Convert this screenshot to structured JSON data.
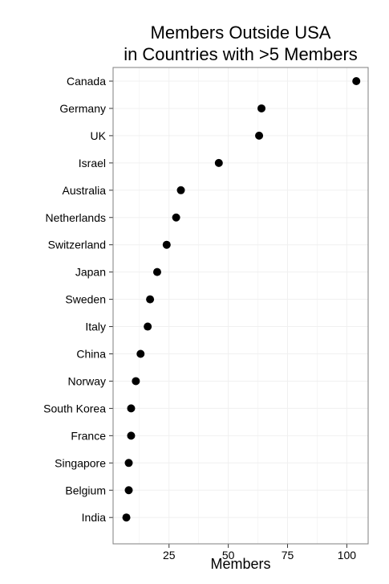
{
  "chart_data": {
    "type": "scatter",
    "title": [
      "Members Outside USA",
      "in Countries with >5 Members"
    ],
    "xlabel": "Members",
    "ylabel": "",
    "categories": [
      "Canada",
      "Germany",
      "UK",
      "Israel",
      "Australia",
      "Netherlands",
      "Switzerland",
      "Japan",
      "Sweden",
      "Italy",
      "China",
      "Norway",
      "South Korea",
      "France",
      "Singapore",
      "Belgium",
      "India"
    ],
    "values": [
      104,
      64,
      63,
      46,
      30,
      28,
      24,
      20,
      17,
      16,
      13,
      11,
      9,
      9,
      8,
      8,
      7
    ],
    "xlim": [
      1.4,
      109
    ],
    "xticks": [
      25,
      50,
      75,
      100
    ],
    "grid": true,
    "legend": "none",
    "colors": {
      "point": "#000000",
      "grid": "#f0f0f0",
      "panel_border": "#7f7f7f"
    }
  }
}
